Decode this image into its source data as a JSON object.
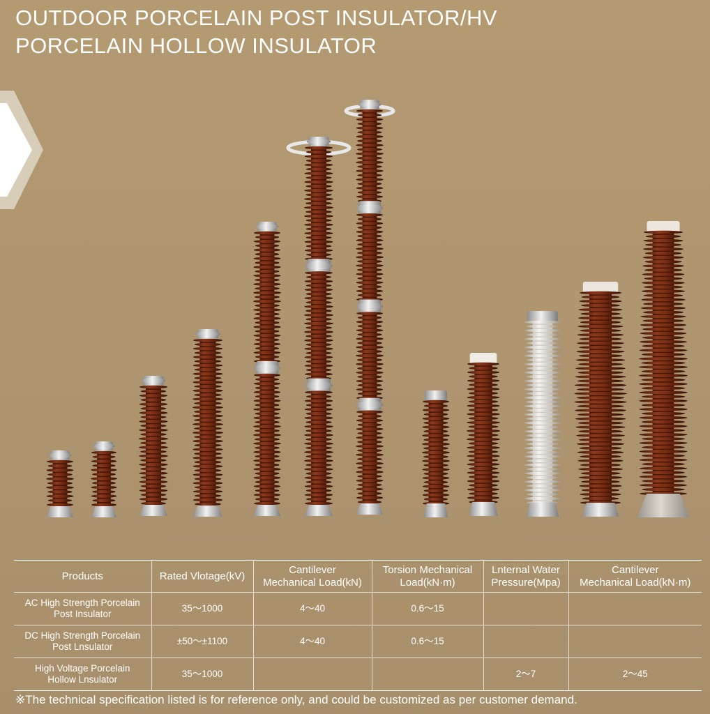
{
  "title": {
    "line1": "OUTDOOR PORCELAIN POST INSULATOR/HV",
    "line2": "PORCELAIN HOLLOW INSULATOR"
  },
  "colors": {
    "background": "#b09771",
    "porcelain_brown": "#6e2410",
    "porcelain_white": "#ecebe4",
    "fitting_metal": "#c9c9c9"
  },
  "table": {
    "headers": [
      {
        "line1": "Products",
        "line2": ""
      },
      {
        "line1": "Rated Vlotage(kV)",
        "line2": ""
      },
      {
        "line1": "Cantilever",
        "line2": "Mechanical Load(kN)"
      },
      {
        "line1": "Torsion Mechanical",
        "line2": "Load(kN·m)"
      },
      {
        "line1": "Lnternal Water",
        "line2": "Pressure(Mpa)"
      },
      {
        "line1": "Cantilever",
        "line2": "Mechanical Load(kN·m)"
      }
    ],
    "rows": [
      {
        "product_line1": "AC High Strength Porcelain",
        "product_line2": "Post Insulator",
        "voltage": "35～1000",
        "cantilever_kn": "4～40",
        "torsion": "0.6～15",
        "water_pressure": "",
        "cantilever_knm": ""
      },
      {
        "product_line1": "DC High Strength Porcelain",
        "product_line2": "Post Lnsulator",
        "voltage": "±50～±1100",
        "cantilever_kn": "4～40",
        "torsion": "0.6～15",
        "water_pressure": "",
        "cantilever_knm": ""
      },
      {
        "product_line1": "High Voltage Porcelain",
        "product_line2": "Hollow Lnsulator",
        "voltage": "35～1000",
        "cantilever_kn": "",
        "torsion": "",
        "water_pressure": "2～7",
        "cantilever_knm": "2～45"
      }
    ]
  },
  "note": "※The technical specification listed is for reference only, and could be customized as per customer demand."
}
